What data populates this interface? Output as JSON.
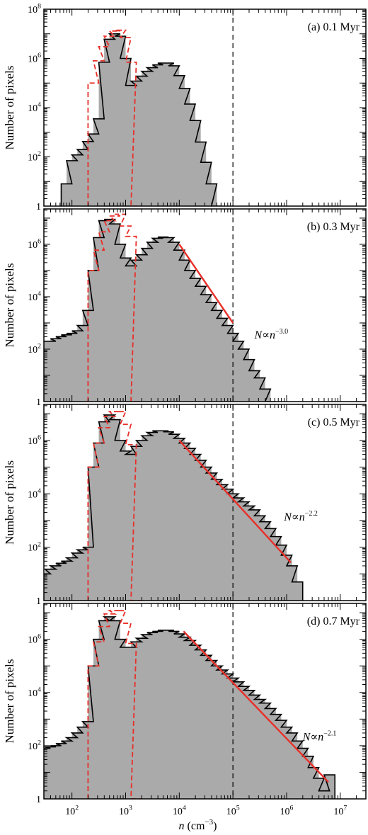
{
  "figure": {
    "xlabel": "n (cm⁻³)",
    "xlabel_var": "n",
    "xlabel_unit": " (cm",
    "xlabel_exp": "−3",
    "xlabel_close": ")",
    "ylabel": "Number of pixels",
    "x_scale": "log",
    "y_scale": "log",
    "xlim": [
      30,
      30000000
    ],
    "ylim": [
      1,
      100000000
    ],
    "x_ticks": [
      {
        "base": "10",
        "exp": "2",
        "value": 100
      },
      {
        "base": "10",
        "exp": "3",
        "value": 1000
      },
      {
        "base": "10",
        "exp": "4",
        "value": 10000
      },
      {
        "base": "10",
        "exp": "5",
        "value": 100000
      },
      {
        "base": "10",
        "exp": "6",
        "value": 1000000
      },
      {
        "base": "10",
        "exp": "7",
        "value": 10000000
      }
    ],
    "y_ticks_top": [
      {
        "base": "1",
        "exp": "",
        "value": 1
      },
      {
        "base": "10",
        "exp": "2",
        "value": 100
      },
      {
        "base": "10",
        "exp": "4",
        "value": 10000
      },
      {
        "base": "10",
        "exp": "6",
        "value": 1000000
      },
      {
        "base": "10",
        "exp": "8",
        "value": 100000000
      }
    ],
    "y_ticks_other": [
      {
        "base": "1",
        "exp": "",
        "value": 1
      },
      {
        "base": "10",
        "exp": "2",
        "value": 100
      },
      {
        "base": "10",
        "exp": "4",
        "value": 10000
      },
      {
        "base": "10",
        "exp": "6",
        "value": 1000000
      }
    ],
    "vline_x": 100000,
    "bins_per_decade": 5,
    "colors": {
      "fill": "#aaaaaa",
      "outline": "#000000",
      "red": "#e8302a",
      "vline": "#000000"
    }
  },
  "chart_data": [
    {
      "type": "bar",
      "panel": "(a) 0.1 Myr",
      "label": "(a) 0.1 Myr",
      "log10_bin_left_edges": [
        1.8,
        1.9,
        2.0,
        2.1,
        2.2,
        2.3,
        2.4,
        2.5,
        2.6,
        2.7,
        2.8,
        2.9,
        3.0,
        3.1,
        3.2,
        3.3,
        3.4,
        3.5,
        3.6,
        3.7,
        3.8,
        3.9,
        4.0,
        4.1,
        4.2,
        4.3,
        4.4,
        4.5,
        4.6
      ],
      "grey_counts": [
        8,
        70,
        120,
        200,
        420,
        850,
        3500,
        700000,
        6000000,
        10000000,
        8000000,
        1000000,
        80000,
        120000,
        190000,
        300000,
        420000,
        550000,
        650000,
        650000,
        500000,
        200000,
        60000,
        14000,
        3000,
        400,
        60,
        8,
        0
      ],
      "red_hist": {
        "log10_left_edges": [
          2.3,
          2.4,
          2.5,
          2.6,
          2.7,
          2.8,
          2.9,
          3.0,
          3.1
        ],
        "counts": [
          100000,
          800000,
          3000000,
          8000000,
          13000000,
          14000000,
          7000000,
          700000,
          0
        ]
      },
      "fit": null
    },
    {
      "type": "bar",
      "panel": "(b) 0.3 Myr",
      "label": "(b) 0.3 Myr",
      "log10_bin_left_edges": [
        1.4,
        1.5,
        1.6,
        1.7,
        1.8,
        1.9,
        2.0,
        2.1,
        2.2,
        2.3,
        2.4,
        2.5,
        2.6,
        2.7,
        2.8,
        2.9,
        3.0,
        3.1,
        3.2,
        3.3,
        3.4,
        3.5,
        3.6,
        3.7,
        3.8,
        3.9,
        4.0,
        4.1,
        4.2,
        4.3,
        4.4,
        4.5,
        4.6,
        4.7,
        4.8,
        4.9,
        5.0,
        5.1,
        5.2,
        5.3,
        5.4,
        5.5,
        5.6
      ],
      "grey_counts": [
        200,
        200,
        250,
        300,
        350,
        400,
        500,
        800,
        3000,
        100000,
        1800000,
        8000000,
        9000000,
        6000000,
        1000000,
        300000,
        150000,
        250000,
        400000,
        700000,
        1200000,
        1700000,
        1900000,
        1800000,
        1200000,
        600000,
        250000,
        100000,
        50000,
        25000,
        12000,
        6000,
        3000,
        1500,
        800,
        400,
        200,
        100,
        40,
        15,
        8,
        3,
        1
      ],
      "red_hist": {
        "log10_left_edges": [
          2.3,
          2.4,
          2.5,
          2.6,
          2.7,
          2.8,
          2.9,
          3.0,
          3.1
        ],
        "counts": [
          100000,
          600000,
          3000000,
          8000000,
          12000000,
          14000000,
          5000000,
          2000000,
          0
        ]
      },
      "fit": {
        "label": "N∝n⁻³·⁰",
        "text_N": "N",
        "text_prop": "∝",
        "text_n": "n",
        "exponent": "−3.0",
        "slope": -3.0,
        "x_range": [
          10000,
          100000
        ],
        "y_at_x_start": 1000000
      }
    },
    {
      "type": "bar",
      "panel": "(c) 0.5 Myr",
      "label": "(c) 0.5 Myr",
      "log10_bin_left_edges": [
        1.4,
        1.5,
        1.6,
        1.7,
        1.8,
        1.9,
        2.0,
        2.1,
        2.2,
        2.3,
        2.4,
        2.5,
        2.6,
        2.7,
        2.8,
        2.9,
        3.0,
        3.1,
        3.2,
        3.3,
        3.4,
        3.5,
        3.6,
        3.7,
        3.8,
        3.9,
        4.0,
        4.1,
        4.2,
        4.3,
        4.4,
        4.5,
        4.6,
        4.7,
        4.8,
        4.9,
        5.0,
        5.1,
        5.2,
        5.3,
        5.4,
        5.5,
        5.6,
        5.7,
        5.8,
        5.9,
        6.0,
        6.1
      ],
      "grey_counts": [
        10,
        15,
        20,
        25,
        30,
        40,
        60,
        80,
        100,
        100000,
        800000,
        5000000,
        9000000,
        6000000,
        1000000,
        400000,
        300000,
        600000,
        1000000,
        1500000,
        2000000,
        2300000,
        2300000,
        2100000,
        1700000,
        1200000,
        800000,
        500000,
        300000,
        180000,
        100000,
        60000,
        35000,
        22000,
        15000,
        10000,
        7000,
        5000,
        3500,
        2500,
        1500,
        900,
        500,
        250,
        120,
        50,
        20,
        5
      ],
      "red_hist": {
        "log10_left_edges": [
          2.3,
          2.4,
          2.5,
          2.6,
          2.7,
          2.8,
          2.9,
          3.0,
          3.1
        ],
        "counts": [
          100000,
          800000,
          3000000,
          8000000,
          12000000,
          12000000,
          4000000,
          700000,
          0
        ]
      },
      "fit": {
        "label": "N∝n⁻²·²",
        "text_N": "N",
        "text_prop": "∝",
        "text_n": "n",
        "exponent": "−2.2",
        "slope": -2.2,
        "x_range": [
          10000,
          1200000
        ],
        "y_at_x_start": 1000000
      }
    },
    {
      "type": "bar",
      "panel": "(d) 0.7 Myr",
      "label": "(d) 0.7 Myr",
      "log10_bin_left_edges": [
        1.4,
        1.5,
        1.6,
        1.7,
        1.8,
        1.9,
        2.0,
        2.1,
        2.2,
        2.3,
        2.4,
        2.5,
        2.6,
        2.7,
        2.8,
        2.9,
        3.0,
        3.1,
        3.2,
        3.3,
        3.4,
        3.5,
        3.6,
        3.7,
        3.8,
        3.9,
        4.0,
        4.1,
        4.2,
        4.3,
        4.4,
        4.5,
        4.6,
        4.7,
        4.8,
        4.9,
        5.0,
        5.1,
        5.2,
        5.3,
        5.4,
        5.5,
        5.6,
        5.7,
        5.8,
        5.9,
        6.0,
        6.1,
        6.2,
        6.3,
        6.4,
        6.5,
        6.6,
        6.7
      ],
      "grey_counts": [
        80,
        90,
        100,
        120,
        150,
        200,
        300,
        500,
        800,
        100000,
        1000000,
        5000000,
        7000000,
        5000000,
        1000000,
        500000,
        500000,
        800000,
        1100000,
        1500000,
        1800000,
        2000000,
        2200000,
        2200000,
        2000000,
        1600000,
        1200000,
        900000,
        600000,
        400000,
        250000,
        160000,
        100000,
        70000,
        50000,
        35000,
        25000,
        17000,
        12000,
        8000,
        5500,
        4000,
        2500,
        1500,
        900,
        500,
        300,
        150,
        80,
        40,
        15,
        6,
        2,
        8
      ],
      "red_hist": {
        "log10_left_edges": [
          2.3,
          2.4,
          2.5,
          2.6,
          2.7,
          2.8,
          2.9,
          3.0,
          3.1
        ],
        "counts": [
          100000,
          800000,
          3000000,
          9000000,
          12000000,
          12000000,
          4000000,
          700000,
          0
        ]
      },
      "fit": {
        "label": "N∝n⁻²·¹",
        "text_N": "N",
        "text_prop": "∝",
        "text_n": "n",
        "exponent": "−2.1",
        "slope": -2.1,
        "x_range": [
          12000,
          6000000
        ],
        "y_at_x_start": 2000000
      }
    }
  ]
}
